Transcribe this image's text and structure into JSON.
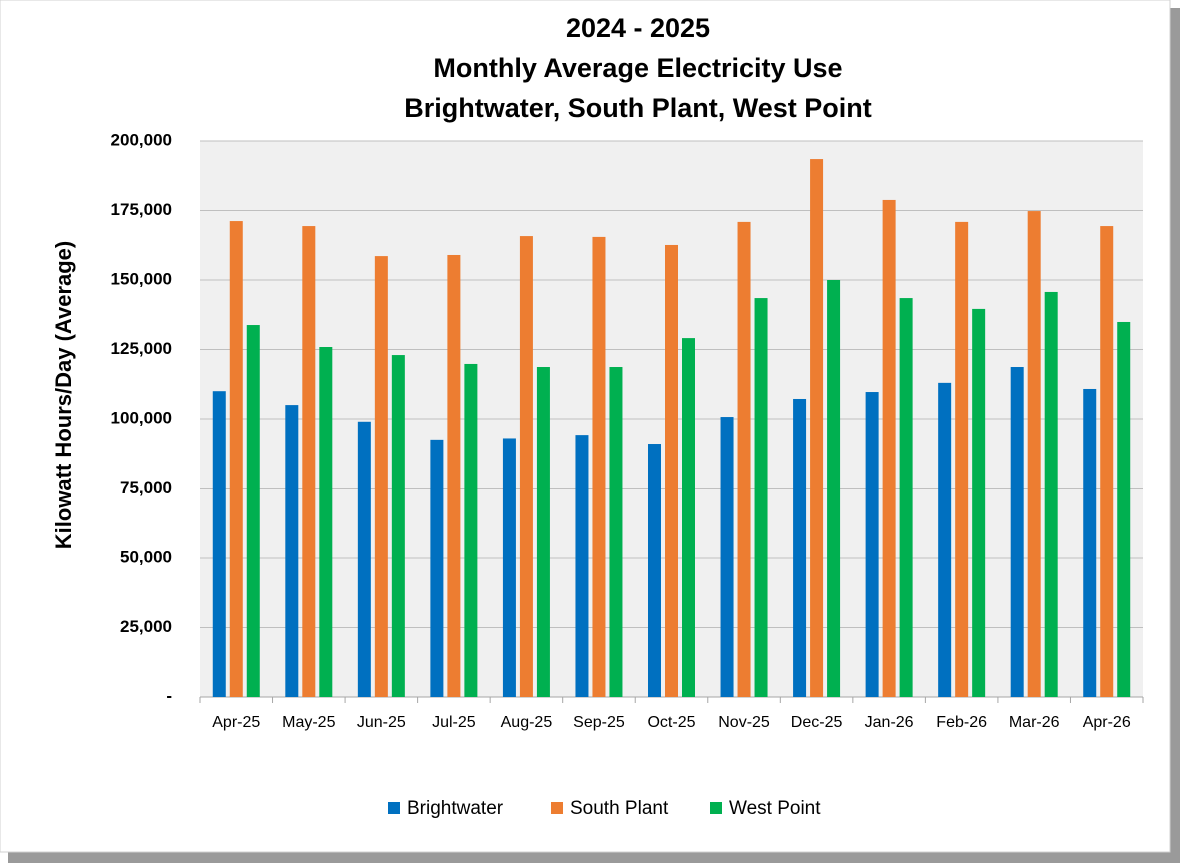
{
  "chart_data": {
    "type": "bar",
    "title": [
      "2024 - 2025",
      "Monthly Average Electricity Use",
      "Brightwater, South Plant, West Point"
    ],
    "y_label": "Kilowatt Hours/Day (Average)",
    "categories": [
      "Apr-25",
      "May-25",
      "Jun-25",
      "Jul-25",
      "Aug-25",
      "Sep-25",
      "Oct-25",
      "Nov-25",
      "Dec-25",
      "Jan-26",
      "Feb-26",
      "Mar-26",
      "Apr-26"
    ],
    "series": [
      {
        "name": "Brightwater",
        "color": "#0070c0",
        "values": [
          110000,
          105000,
          99000,
          92500,
          93000,
          94200,
          91000,
          100700,
          107200,
          109700,
          113000,
          118700,
          110800
        ]
      },
      {
        "name": "South Plant",
        "color": "#ed7d31",
        "values": [
          171200,
          169400,
          158600,
          159000,
          165800,
          165500,
          162600,
          170900,
          193500,
          178800,
          170900,
          174800,
          169400
        ]
      },
      {
        "name": "West Point",
        "color": "#00b050",
        "values": [
          133800,
          125900,
          123000,
          119800,
          118700,
          118700,
          129100,
          143500,
          150000,
          143500,
          139600,
          145700,
          134900
        ]
      }
    ],
    "ylim": [
      0,
      200000
    ],
    "yticks": [
      {
        "value": 0,
        "label": "-"
      },
      {
        "value": 25000,
        "label": "25,000"
      },
      {
        "value": 50000,
        "label": "50,000"
      },
      {
        "value": 75000,
        "label": "75,000"
      },
      {
        "value": 100000,
        "label": "100,000"
      },
      {
        "value": 125000,
        "label": "125,000"
      },
      {
        "value": 150000,
        "label": "150,000"
      },
      {
        "value": 175000,
        "label": "175,000"
      },
      {
        "value": 200000,
        "label": "200,000"
      }
    ],
    "grid": true,
    "legend": "bottom"
  }
}
